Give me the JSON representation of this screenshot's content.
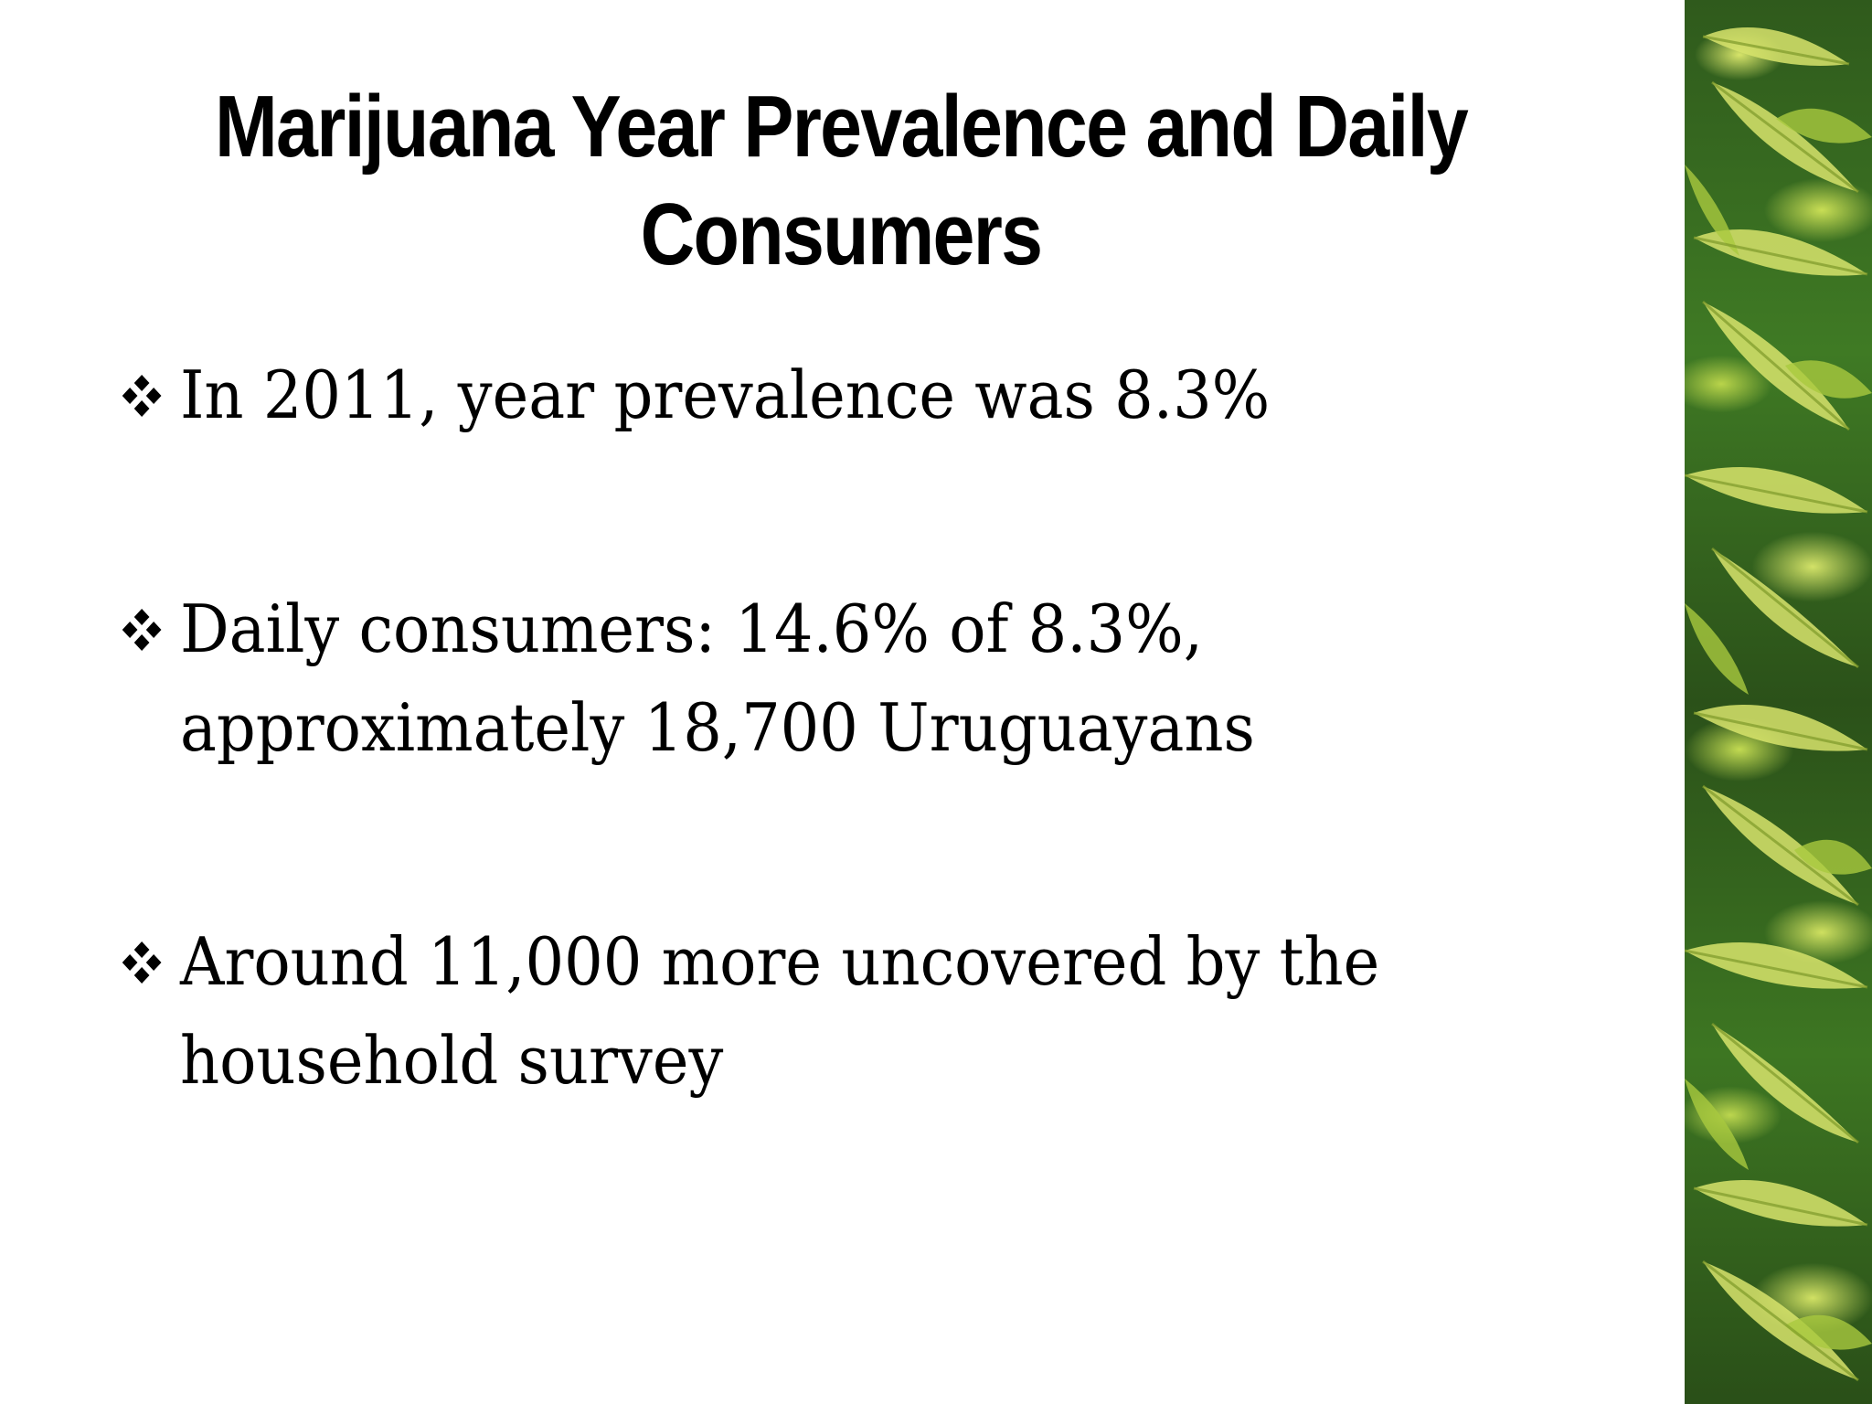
{
  "slide": {
    "title": "Marijuana Year Prevalence and Daily Consumers",
    "bullets": [
      {
        "text": "In 2011, year prevalence was 8.3%"
      },
      {
        "text": "Daily consumers: 14.6% of 8.3%, approximately 18,700 Uruguayans"
      },
      {
        "text": "Around 11,000 more uncovered by the household survey"
      }
    ],
    "bullet_icon": "four-diamond-bullet-icon",
    "side_image": "marijuana-leaves-photo"
  }
}
